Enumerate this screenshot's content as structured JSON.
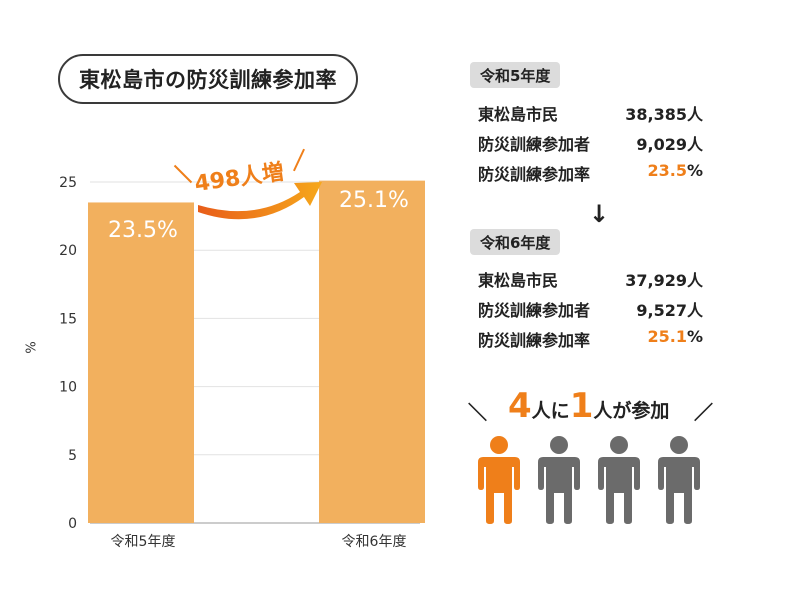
{
  "title": "東松島市の防災訓練参加率",
  "chart_data": {
    "type": "bar",
    "categories": [
      "令和5年度",
      "令和6年度"
    ],
    "values": [
      23.5,
      25.1
    ],
    "value_labels": [
      "23.5%",
      "25.1%"
    ],
    "ylabel": "%",
    "ylim": [
      0,
      25
    ],
    "yticks": [
      "0",
      "5",
      "10",
      "15",
      "20",
      "25"
    ],
    "bar_color": "#f2b05e",
    "grid": true,
    "annotation": "498人増"
  },
  "panels": [
    {
      "year": "令和5年度",
      "rows": [
        {
          "label": "東松島市民",
          "value": "38,385人"
        },
        {
          "label": "防災訓練参加者",
          "value": "9,029人"
        },
        {
          "label": "防災訓練参加率",
          "value_num": "23.5",
          "value_unit": "%"
        }
      ]
    },
    {
      "year": "令和6年度",
      "rows": [
        {
          "label": "東松島市民",
          "value": "37,929人"
        },
        {
          "label": "防災訓練参加者",
          "value": "9,527人"
        },
        {
          "label": "防災訓練参加率",
          "value_num": "25.1",
          "value_unit": "%"
        }
      ]
    }
  ],
  "arrow": "↓",
  "summary": {
    "num1": "4",
    "text1": "人に",
    "num2": "1",
    "text2": "人が参加",
    "slash_left": "＼",
    "slash_right": "／"
  },
  "people": {
    "highlight_color": "#ef7f1a",
    "other_color": "#6b6b6b",
    "count": 4,
    "highlighted": 1
  },
  "colors": {
    "accent": "#ef7f1a",
    "tag_bg": "#dcdcdc"
  }
}
